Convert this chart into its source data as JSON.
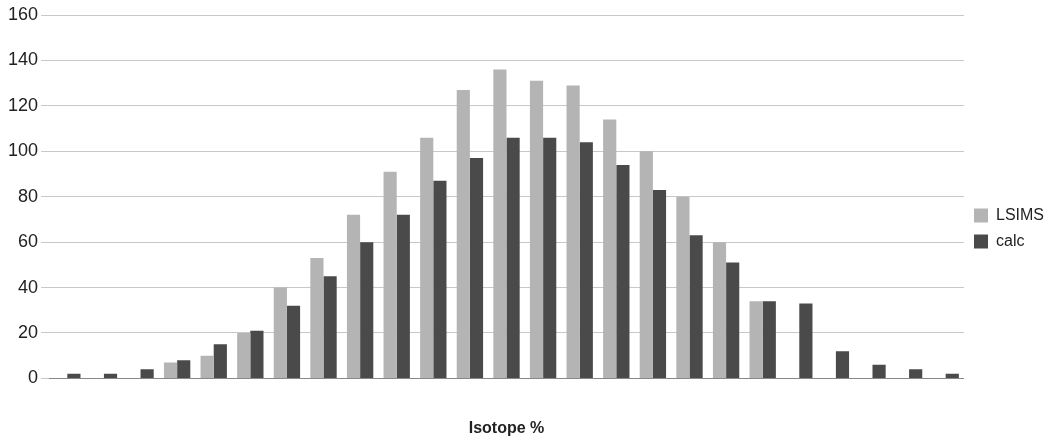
{
  "chart_data": {
    "type": "bar",
    "xlabel": "Isotope %",
    "categories": [
      null,
      null,
      null,
      null,
      null,
      null,
      null,
      null,
      null,
      null,
      null,
      null,
      null,
      null,
      null,
      null,
      null,
      null,
      null,
      null,
      null,
      null,
      null,
      null,
      null
    ],
    "series": [
      {
        "name": "LSIMS",
        "color": "#b4b4b4",
        "values": [
          null,
          null,
          null,
          7,
          10,
          20,
          40,
          53,
          72,
          91,
          106,
          127,
          136,
          131,
          129,
          114,
          100,
          80,
          60,
          34,
          null,
          null,
          null,
          null,
          null
        ]
      },
      {
        "name": "calc",
        "color": "#4a4a4a",
        "values": [
          2,
          2,
          4,
          8,
          15,
          21,
          32,
          45,
          60,
          72,
          87,
          97,
          106,
          106,
          104,
          94,
          83,
          63,
          51,
          34,
          33,
          12,
          6,
          4,
          2
        ]
      }
    ],
    "ylim": [
      0,
      160
    ],
    "yticks": [
      0,
      20,
      40,
      60,
      80,
      100,
      120,
      140,
      160
    ],
    "grid": "y",
    "legend": "right"
  }
}
